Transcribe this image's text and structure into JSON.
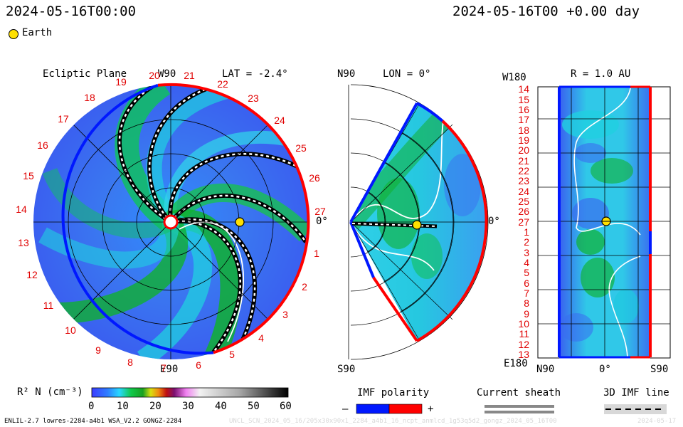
{
  "header": {
    "left_timestamp": "2024-05-16T00:00",
    "right_timestamp": "2024-05-16T00 +0.00 day",
    "legend_earth": "Earth"
  },
  "ecliptic_panel": {
    "title": "Ecliptic Plane",
    "top_label": "W90",
    "bottom_label": "E90",
    "right_label": "0°",
    "lat_label": "LAT = -2.4°",
    "rotation_labels": [
      "20",
      "21",
      "22",
      "23",
      "24",
      "25",
      "26",
      "27",
      "1",
      "2",
      "3",
      "4",
      "5",
      "6",
      "7",
      "8",
      "9",
      "10",
      "11",
      "12",
      "13",
      "14",
      "15",
      "16",
      "17",
      "18",
      "19"
    ]
  },
  "meridional_panel": {
    "top_label": "N90",
    "bottom_label": "S90",
    "lon_label": "LON = 0°",
    "right_label": "0°"
  },
  "radial_panel": {
    "r_label": "R = 1.0 AU",
    "top_left_label": "W180",
    "bottom_left_label": "E180",
    "x_axis_labels": [
      "N90",
      "0°",
      "S90"
    ],
    "y_axis_labels": [
      "14",
      "15",
      "16",
      "17",
      "18",
      "19",
      "20",
      "21",
      "22",
      "23",
      "24",
      "25",
      "26",
      "27",
      "1",
      "2",
      "3",
      "4",
      "5",
      "6",
      "7",
      "8",
      "9",
      "10",
      "11",
      "12",
      "13"
    ]
  },
  "colorbar": {
    "label": "R² N (cm⁻³)",
    "ticks": [
      "0",
      "10",
      "20",
      "30",
      "40",
      "50",
      "60"
    ],
    "range": [
      0,
      60
    ]
  },
  "legends": {
    "imf_polarity": "IMF polarity",
    "imf_minus": "–",
    "imf_plus": "+",
    "current_sheath": "Current sheath",
    "imf_line": "3D IMF line",
    "polarity_colors": {
      "negative": "#0018ff",
      "positive": "#ff0000"
    }
  },
  "footer": {
    "model_info": "ENLIL-2.7 lowres-2284-a4b1 WSA_V2.2 GONGZ-2284",
    "faint_path": "UNCL_SCN_2024_05_16/205x30x90x1_2284_a4b1_16_ncpt_anmlcd_1g53q5d2_gongz_2024_05_16T00",
    "faint_date": "2024-05-17"
  },
  "colors": {
    "background": "#ffffff",
    "density_low": "#3050f0",
    "density_mid": "#20d0e0",
    "density_high": "#10b020",
    "rotation_label": "#e00000"
  }
}
